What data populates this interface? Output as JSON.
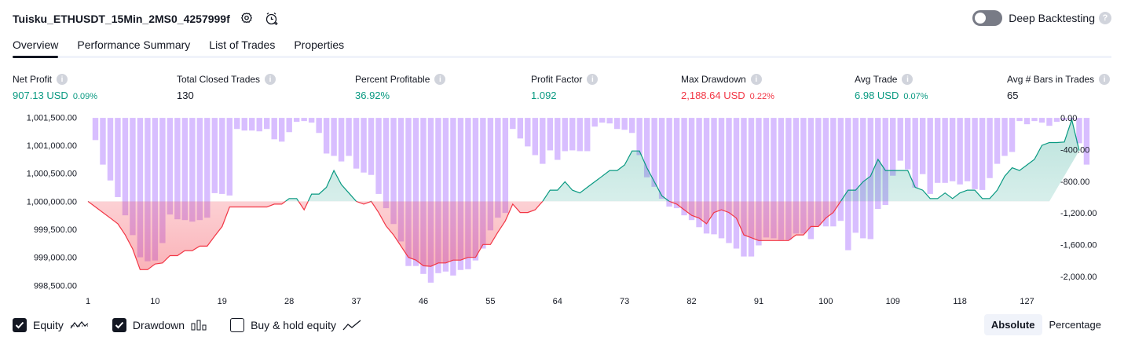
{
  "header": {
    "strategy_title": "Tuisku_ETHUSDT_15Min_2MS0_4257999f",
    "settings_icon": "gear-icon",
    "alert_icon": "alarm-add-icon",
    "deep_backtesting_label": "Deep Backtesting",
    "deep_backtesting_enabled": false
  },
  "tabs": [
    {
      "label": "Overview",
      "active": true
    },
    {
      "label": "Performance Summary",
      "active": false
    },
    {
      "label": "List of Trades",
      "active": false
    },
    {
      "label": "Properties",
      "active": false
    }
  ],
  "metrics": [
    {
      "label": "Net Profit",
      "value": "907.13 USD",
      "pct": "0.09%",
      "color": "#089981"
    },
    {
      "label": "Total Closed Trades",
      "value": "130",
      "pct": "",
      "color": "#131722"
    },
    {
      "label": "Percent Profitable",
      "value": "36.92%",
      "pct": "",
      "color": "#089981"
    },
    {
      "label": "Profit Factor",
      "value": "1.092",
      "pct": "",
      "color": "#089981"
    },
    {
      "label": "Max Drawdown",
      "value": "2,188.64 USD",
      "pct": "0.22%",
      "color": "#f23645"
    },
    {
      "label": "Avg Trade",
      "value": "6.98 USD",
      "pct": "0.07%",
      "color": "#089981"
    },
    {
      "label": "Avg # Bars in Trades",
      "value": "65",
      "pct": "",
      "color": "#131722"
    }
  ],
  "chart_data": {
    "type": "line",
    "baseline": 1000000,
    "left_ticks": [
      "1,001,500.00",
      "1,001,000.00",
      "1,000,500.00",
      "1,000,000.00",
      "999,500.00",
      "999,000.00",
      "998,500.00"
    ],
    "left_range": [
      998350,
      1001660
    ],
    "right_ticks": [
      "0.00",
      "-400.00",
      "-800.00",
      "-1,200.00",
      "-1,600.00",
      "-2,000.00"
    ],
    "right_range": [
      -2220,
      120
    ],
    "x_ticks": [
      "1",
      "10",
      "19",
      "28",
      "37",
      "46",
      "55",
      "64",
      "73",
      "82",
      "91",
      "100",
      "109",
      "118",
      "127"
    ],
    "trade_count": 130,
    "series": [
      {
        "name": "Equity",
        "values": [
          1000000,
          999900,
          999800,
          999700,
          999600,
          999400,
          999150,
          998780,
          998780,
          998880,
          998900,
          999030,
          999030,
          999120,
          999120,
          999200,
          999200,
          999380,
          999550,
          999900,
          999900,
          999900,
          999900,
          999900,
          999900,
          999950,
          999950,
          1000050,
          1000050,
          999850,
          1000130,
          1000130,
          1000250,
          1000550,
          1000300,
          1000150,
          1000000,
          999950,
          1000000,
          999800,
          999560,
          999400,
          999200,
          999000,
          998950,
          998850,
          998840,
          998900,
          998900,
          998950,
          998950,
          999000,
          999000,
          999230,
          999230,
          999450,
          999650,
          999950,
          999800,
          999800,
          999850,
          1000000,
          1000200,
          1000200,
          1000350,
          1000200,
          1000150,
          1000250,
          1000350,
          1000450,
          1000550,
          1000550,
          1000650,
          1000900,
          1000900,
          1000600,
          1000350,
          1000100,
          1000000,
          999950,
          999850,
          999750,
          999700,
          999600,
          999800,
          999850,
          999800,
          999700,
          999400,
          999350,
          999300,
          999300,
          999300,
          999300,
          999300,
          999400,
          999400,
          999550,
          999550,
          999700,
          999800,
          1000000,
          1000200,
          1000200,
          1000350,
          1000450,
          1000750,
          1000550,
          1000550,
          1000550,
          1000550,
          1000250,
          1000200,
          1000050,
          1000050,
          1000150,
          1000050,
          1000150,
          1000200,
          1000200,
          1000050,
          1000050,
          1000200,
          1000450,
          1000600,
          1000550,
          1000650,
          1000750,
          1001000,
          1001050,
          1001050,
          1001060,
          1001460,
          1000907
        ]
      },
      {
        "name": "Drawdown",
        "values": [
          0,
          -280,
          -590,
          -790,
          -1000,
          -1230,
          -1480,
          -1760,
          -1810,
          -1800,
          -1580,
          -1220,
          -1280,
          -1290,
          -1310,
          -1290,
          -1260,
          -950,
          -960,
          -980,
          -140,
          -160,
          -160,
          -170,
          -140,
          -270,
          -300,
          -180,
          -50,
          -40,
          -60,
          -190,
          -450,
          -480,
          -550,
          -480,
          -640,
          -690,
          -720,
          -960,
          -1140,
          -1340,
          -1560,
          -1870,
          -1870,
          -1970,
          -2080,
          -1960,
          -1940,
          -1990,
          -1920,
          -1910,
          -1800,
          -1650,
          -1420,
          -1260,
          -1200,
          -140,
          -260,
          -360,
          -470,
          -580,
          -410,
          -530,
          -420,
          -410,
          -420,
          -420,
          -110,
          -60,
          -70,
          -140,
          -150,
          -190,
          -470,
          -750,
          -870,
          -1020,
          -1120,
          -1140,
          -1230,
          -1290,
          -1380,
          -1460,
          -1470,
          -1520,
          -1580,
          -1650,
          -1750,
          -1750,
          -1610,
          -1510,
          -1520,
          -1540,
          -1540,
          -1460,
          -1460,
          -1530,
          -1360,
          -1370,
          -1370,
          -1300,
          -1670,
          -1450,
          -1520,
          -1530,
          -1150,
          -1100,
          -730,
          -540,
          -650,
          -880,
          -710,
          -960,
          -820,
          -820,
          -800,
          -840,
          -800,
          -900,
          -910,
          -760,
          -580,
          -480,
          -430,
          -40,
          -80,
          -40,
          -60,
          -100,
          -50,
          -30,
          -20,
          -320,
          -590
        ]
      }
    ],
    "equity_color": "#089981",
    "equity_below_color": "#f23645",
    "drawdown_color": "#d1b3ff"
  },
  "legend": [
    {
      "label": "Equity",
      "checked": true,
      "glyph": "equity-line-icon"
    },
    {
      "label": "Drawdown",
      "checked": true,
      "glyph": "bars-icon"
    },
    {
      "label": "Buy & hold equity",
      "checked": false,
      "glyph": "trend-line-icon"
    }
  ],
  "mode": {
    "options": [
      "Absolute",
      "Percentage"
    ],
    "selected": "Absolute"
  }
}
